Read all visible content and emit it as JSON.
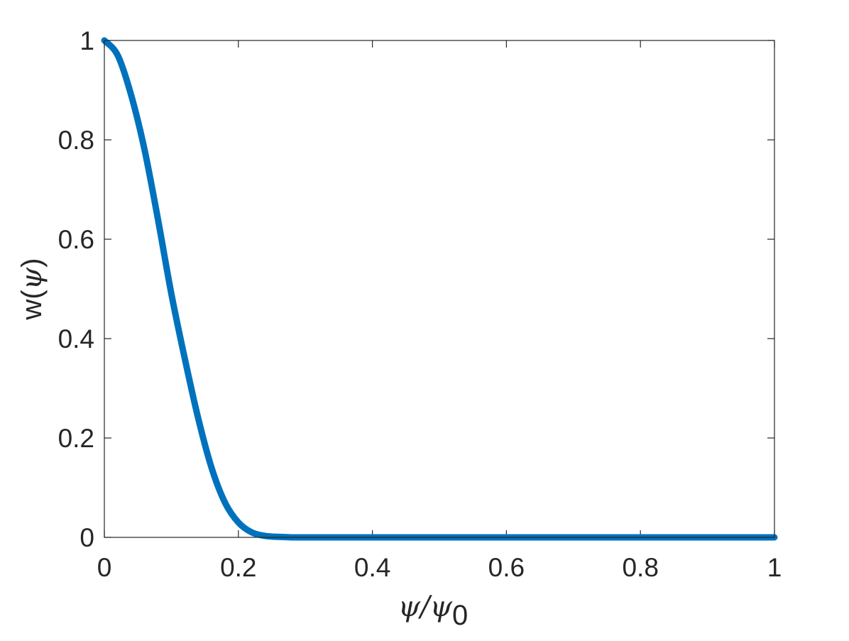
{
  "chart_data": {
    "type": "line",
    "xlim": [
      0,
      1
    ],
    "ylim": [
      0,
      1
    ],
    "x_ticks": [
      "0",
      "0.2",
      "0.4",
      "0.6",
      "0.8",
      "1"
    ],
    "y_ticks": [
      "0",
      "0.2",
      "0.4",
      "0.6",
      "0.8",
      "1"
    ],
    "xlabel": {
      "base": "ψ/ψ",
      "subscript": "0"
    },
    "ylabel": {
      "prefix": "w(",
      "symbol": "ψ",
      "suffix": ")"
    },
    "grid": false,
    "series": [
      {
        "color": "#0072BD",
        "x": [
          0,
          0.02,
          0.04,
          0.06,
          0.08,
          0.1,
          0.12,
          0.14,
          0.16,
          0.18,
          0.2,
          0.22,
          0.24,
          0.26,
          0.28,
          0.3,
          0.4,
          0.5,
          0.6,
          0.7,
          0.8,
          0.9,
          1.0
        ],
        "y": [
          1.0,
          0.97,
          0.89,
          0.78,
          0.64,
          0.49,
          0.36,
          0.24,
          0.14,
          0.07,
          0.03,
          0.01,
          0.003,
          0.001,
          0,
          0,
          0,
          0,
          0,
          0,
          0,
          0,
          0
        ]
      }
    ]
  }
}
